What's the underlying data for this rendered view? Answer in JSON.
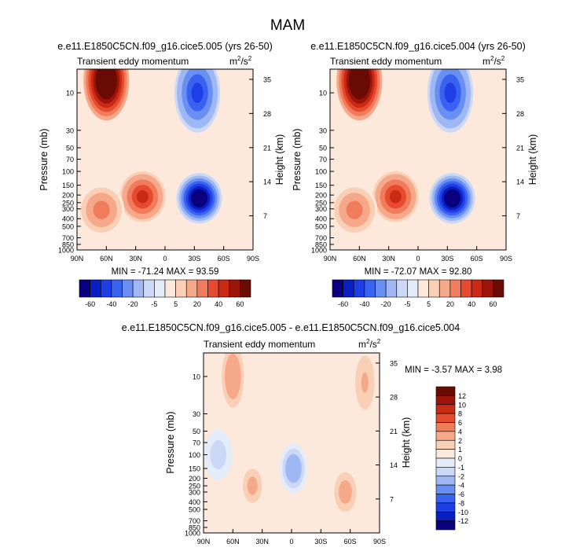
{
  "figure_title": "MAM",
  "colors": {
    "palette_neg": [
      "#08007f",
      "#0a1fbf",
      "#1e3fe6",
      "#3a62f0",
      "#6a8ff2",
      "#9fb7f3",
      "#cbd9f6",
      "#e4ecfa"
    ],
    "palette_pos": [
      "#fde9dc",
      "#f9cfb5",
      "#f5a98a",
      "#f07c5c",
      "#e64b2f",
      "#c92a14",
      "#9c130a",
      "#6a0a05"
    ],
    "axis": "#000000"
  },
  "chart_data": [
    {
      "type": "contour",
      "title": "e.e11.E1850C5CN.f09_g16.cice5.005 (yrs 26-50)",
      "subtitle_left": "Transient eddy momentum",
      "units_base": "m",
      "units_exp1": "2",
      "units_mid": "/s",
      "units_exp2": "2",
      "xlabel": "",
      "ylabel": "Pressure (mb)",
      "ylabel_right": "Height (km)",
      "x_ticks": [
        "90N",
        "60N",
        "30N",
        "0",
        "30S",
        "60S",
        "90S"
      ],
      "x_range": [
        90,
        -90
      ],
      "y_ticks": [
        "10",
        "30",
        "50",
        "70",
        "100",
        "150",
        "200",
        "250",
        "300",
        "400",
        "500",
        "700",
        "850",
        "1000"
      ],
      "y_tick_values": [
        10,
        30,
        50,
        70,
        100,
        150,
        200,
        250,
        300,
        400,
        500,
        700,
        850,
        1000
      ],
      "y_range": [
        5,
        1000
      ],
      "height_ticks": [
        "35",
        "28",
        "21",
        "14",
        "7"
      ],
      "stats_text": "MIN = -71.24  MAX =  93.59",
      "min": -71.24,
      "max": 93.59,
      "features": [
        {
          "lat": 60,
          "p": 7,
          "value": 93.59,
          "sign": 1
        },
        {
          "lat": 23,
          "p": 210,
          "value": 45,
          "sign": 1
        },
        {
          "lat": 65,
          "p": 310,
          "value": 25,
          "sign": 1
        },
        {
          "lat": -33,
          "p": 10,
          "value": -45,
          "sign": -1
        },
        {
          "lat": -35,
          "p": 220,
          "value": -71.24,
          "sign": -1
        }
      ],
      "colorbar": {
        "orientation": "horizontal",
        "labels": [
          "-60",
          "-40",
          "-20",
          "-5",
          "5",
          "20",
          "40",
          "60"
        ],
        "levels": [
          -70,
          -60,
          -50,
          -40,
          -30,
          -20,
          -10,
          -5,
          0,
          5,
          10,
          20,
          30,
          40,
          50,
          60,
          70
        ]
      }
    },
    {
      "type": "contour",
      "title": "e.e11.E1850C5CN.f09_g16.cice5.004 (yrs 26-50)",
      "subtitle_left": "Transient eddy momentum",
      "units_base": "m",
      "units_exp1": "2",
      "units_mid": "/s",
      "units_exp2": "2",
      "xlabel": "",
      "ylabel": "Pressure (mb)",
      "ylabel_right": "Height (km)",
      "x_ticks": [
        "90N",
        "60N",
        "30N",
        "0",
        "30S",
        "60S",
        "90S"
      ],
      "x_range": [
        90,
        -90
      ],
      "y_ticks": [
        "10",
        "30",
        "50",
        "70",
        "100",
        "150",
        "200",
        "250",
        "300",
        "400",
        "500",
        "700",
        "850",
        "1000"
      ],
      "y_tick_values": [
        10,
        30,
        50,
        70,
        100,
        150,
        200,
        250,
        300,
        400,
        500,
        700,
        850,
        1000
      ],
      "y_range": [
        5,
        1000
      ],
      "height_ticks": [
        "35",
        "28",
        "21",
        "14",
        "7"
      ],
      "stats_text": "MIN = -72.07  MAX =  92.80",
      "min": -72.07,
      "max": 92.8,
      "features": [
        {
          "lat": 60,
          "p": 7,
          "value": 92.8,
          "sign": 1
        },
        {
          "lat": 23,
          "p": 210,
          "value": 45,
          "sign": 1
        },
        {
          "lat": 65,
          "p": 310,
          "value": 25,
          "sign": 1
        },
        {
          "lat": -33,
          "p": 10,
          "value": -45,
          "sign": -1
        },
        {
          "lat": -35,
          "p": 220,
          "value": -72.07,
          "sign": -1
        }
      ],
      "colorbar": {
        "orientation": "horizontal",
        "labels": [
          "-60",
          "-40",
          "-20",
          "-5",
          "5",
          "20",
          "40",
          "60"
        ],
        "levels": [
          -70,
          -60,
          -50,
          -40,
          -30,
          -20,
          -10,
          -5,
          0,
          5,
          10,
          20,
          30,
          40,
          50,
          60,
          70
        ]
      }
    },
    {
      "type": "contour",
      "title": "e.e11.E1850C5CN.f09_g16.cice5.005 - e.e11.E1850C5CN.f09_g16.cice5.004",
      "subtitle_left": "Transient eddy momentum",
      "units_base": "m",
      "units_exp1": "2",
      "units_mid": "/s",
      "units_exp2": "2",
      "xlabel": "",
      "ylabel": "Pressure (mb)",
      "ylabel_right": "Height (km)",
      "x_ticks": [
        "90N",
        "60N",
        "30N",
        "0",
        "30S",
        "60S",
        "90S"
      ],
      "x_range": [
        90,
        -90
      ],
      "y_ticks": [
        "10",
        "30",
        "50",
        "70",
        "100",
        "150",
        "200",
        "250",
        "300",
        "400",
        "500",
        "700",
        "850",
        "1000"
      ],
      "y_tick_values": [
        10,
        30,
        50,
        70,
        100,
        150,
        200,
        250,
        300,
        400,
        500,
        700,
        850,
        1000
      ],
      "y_range": [
        5,
        1000
      ],
      "height_ticks": [
        "35",
        "28",
        "21",
        "14",
        "7"
      ],
      "stats_text": "MIN = -3.57  MAX =  3.98",
      "min": -3.57,
      "max": 3.98,
      "features": [
        {
          "lat": 60,
          "p": 10,
          "value": 3.98,
          "sign": 1
        },
        {
          "lat": 40,
          "p": 250,
          "value": 2.5,
          "sign": 1
        },
        {
          "lat": -55,
          "p": 300,
          "value": 3,
          "sign": 1
        },
        {
          "lat": -75,
          "p": 12,
          "value": 2,
          "sign": 1
        },
        {
          "lat": -2,
          "p": 150,
          "value": -3.57,
          "sign": -1
        },
        {
          "lat": 75,
          "p": 100,
          "value": -2,
          "sign": -1
        }
      ],
      "colorbar": {
        "orientation": "vertical",
        "labels": [
          "12",
          "10",
          "8",
          "6",
          "4",
          "2",
          "1",
          "0",
          "-1",
          "-2",
          "-4",
          "-6",
          "-8",
          "-10",
          "-12"
        ],
        "levels": [
          14,
          12,
          10,
          8,
          6,
          4,
          2,
          1,
          0,
          -1,
          -2,
          -4,
          -6,
          -8,
          -10,
          -12,
          -14
        ]
      }
    }
  ]
}
